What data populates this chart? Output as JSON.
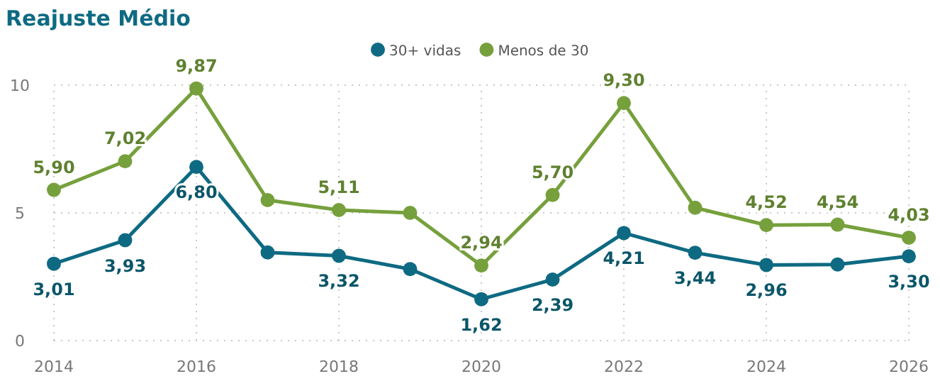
{
  "chart_data": {
    "type": "line",
    "title": "Reajuste Médio",
    "x": [
      2014,
      2015,
      2016,
      2017,
      2018,
      2019,
      2020,
      2021,
      2022,
      2023,
      2024,
      2025,
      2026
    ],
    "xlim": [
      2014,
      2026
    ],
    "xticks": [
      2014,
      2016,
      2018,
      2020,
      2022,
      2024,
      2026
    ],
    "ylim": [
      0,
      10
    ],
    "yticks": [
      0,
      5,
      10
    ],
    "grid": true,
    "legend": "top",
    "marker": "circle",
    "line_style": "solid",
    "series": [
      {
        "name": "30+ vidas",
        "color": "#0e6a82",
        "values": [
          3.01,
          3.93,
          6.8,
          3.45,
          3.32,
          2.8,
          1.62,
          2.39,
          4.21,
          3.44,
          2.96,
          2.98,
          3.3
        ],
        "value_labels": [
          "3,01",
          "3,93",
          "6,80",
          null,
          "3,32",
          null,
          "1,62",
          "2,39",
          "4,21",
          "3,44",
          "2,96",
          null,
          "3,30"
        ]
      },
      {
        "name": "Menos de 30",
        "color": "#76a03c",
        "values": [
          5.9,
          7.02,
          9.87,
          5.5,
          5.11,
          5.0,
          2.94,
          5.7,
          9.3,
          5.2,
          4.52,
          4.54,
          4.03
        ],
        "value_labels": [
          "5,90",
          "7,02",
          "9,87",
          null,
          "5,11",
          null,
          "2,94",
          "5,70",
          "9,30",
          null,
          "4,52",
          "4,54",
          "4,03"
        ]
      }
    ]
  }
}
